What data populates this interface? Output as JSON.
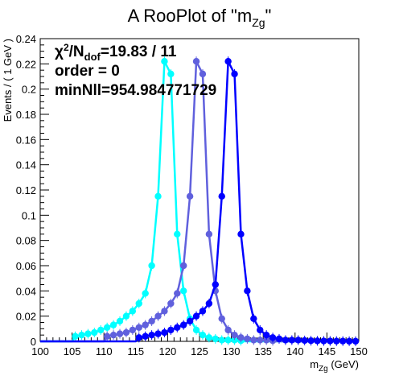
{
  "chart_data": {
    "type": "line",
    "title": "A RooPlot of \"m",
    "title_sub": "Zg",
    "title_end": "\"",
    "xlabel": "m",
    "xlabel_sub": "Zg",
    "xlabel_unit": " (GeV)",
    "ylabel": "Events / ( 1 GeV )",
    "xlim": [
      100,
      150
    ],
    "ylim": [
      0,
      0.24
    ],
    "x_ticks": [
      "100",
      "105",
      "110",
      "115",
      "120",
      "125",
      "130",
      "135",
      "140",
      "145",
      "150"
    ],
    "y_ticks": [
      "0",
      "0.02",
      "0.04",
      "0.06",
      "0.08",
      "0.1",
      "0.12",
      "0.14",
      "0.16",
      "0.18",
      "0.2",
      "0.22",
      "0.24"
    ],
    "y_tick_values": [
      0,
      0.02,
      0.04,
      0.06,
      0.08,
      0.1,
      0.12,
      0.14,
      0.16,
      0.18,
      0.2,
      0.22,
      0.24
    ],
    "annotations": {
      "chi2_prefix": "χ",
      "chi2_sup": "2",
      "chi2_mid": "/N",
      "chi2_sub": "dof",
      "chi2_value": "=19.83 / 11",
      "order": "order = 0",
      "minnll": "minNll=954.984771729"
    },
    "series": [
      {
        "color": "#00ffff",
        "x": [
          105.5,
          106.5,
          107.5,
          108.5,
          109.5,
          110.5,
          111.5,
          112.5,
          113.5,
          114.5,
          115.5,
          116.5,
          117.5,
          118.5,
          119.5,
          120.5,
          121.5,
          122.5,
          123.5,
          124.5,
          125.5,
          126.5,
          127.5,
          128.5,
          129.5,
          130.5,
          131.5
        ],
        "y": [
          0.004,
          0.005,
          0.006,
          0.007,
          0.009,
          0.011,
          0.013,
          0.016,
          0.02,
          0.024,
          0.03,
          0.038,
          0.06,
          0.115,
          0.222,
          0.212,
          0.085,
          0.04,
          0.018,
          0.009,
          0.005,
          0.003,
          0.002,
          0.001,
          0.001,
          0.001,
          0.0005
        ]
      },
      {
        "color": "#6060dd",
        "x": [
          110.5,
          111.5,
          112.5,
          113.5,
          114.5,
          115.5,
          116.5,
          117.5,
          118.5,
          119.5,
          120.5,
          121.5,
          122.5,
          123.5,
          124.5,
          125.5,
          126.5,
          127.5,
          128.5,
          129.5,
          130.5,
          131.5,
          132.5,
          133.5,
          134.5,
          135.5,
          136.5
        ],
        "y": [
          0.004,
          0.005,
          0.006,
          0.007,
          0.009,
          0.011,
          0.013,
          0.016,
          0.02,
          0.024,
          0.03,
          0.038,
          0.06,
          0.115,
          0.222,
          0.212,
          0.085,
          0.04,
          0.018,
          0.009,
          0.005,
          0.003,
          0.002,
          0.001,
          0.001,
          0.001,
          0.0005
        ]
      },
      {
        "color": "#0000ff",
        "x": [
          115.5,
          116.5,
          117.5,
          118.5,
          119.5,
          120.5,
          121.5,
          122.5,
          123.5,
          124.5,
          125.5,
          126.5,
          127.5,
          128.5,
          129.5,
          130.5,
          131.5,
          132.5,
          133.5,
          134.5,
          135.5,
          136.5,
          137.5,
          138.5,
          139.5,
          140.5,
          141.5,
          142.5,
          143.5,
          144.5,
          145.5,
          146.5,
          147.5,
          148.5,
          149.5
        ],
        "y": [
          0.003,
          0.004,
          0.005,
          0.006,
          0.007,
          0.009,
          0.011,
          0.013,
          0.016,
          0.02,
          0.024,
          0.03,
          0.045,
          0.115,
          0.222,
          0.212,
          0.085,
          0.04,
          0.018,
          0.009,
          0.005,
          0.003,
          0.002,
          0.001,
          0.001,
          0.001,
          0.0007,
          0.0005,
          0.0004,
          0.0003,
          0.0003,
          0.0002,
          0.0002,
          0.0001,
          0.0001
        ]
      }
    ]
  }
}
